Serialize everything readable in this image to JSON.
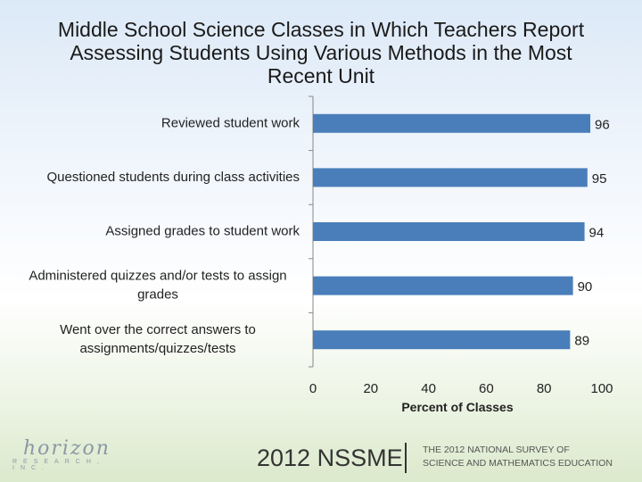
{
  "title": "Middle School Science Classes in Which Teachers Report Assessing Students Using Various Methods in the Most Recent Unit",
  "chart_data": {
    "type": "bar",
    "orientation": "horizontal",
    "categories": [
      "Reviewed student work",
      "Questioned students during class activities",
      "Assigned grades to student work",
      "Administered quizzes and/or tests to assign grades",
      "Went over the correct answers to assignments/quizzes/tests"
    ],
    "category_lines": [
      [
        "Reviewed student work"
      ],
      [
        "Questioned students during class activities"
      ],
      [
        "Assigned grades to student work"
      ],
      [
        "Administered quizzes and/or tests to assign",
        "grades"
      ],
      [
        "Went over the correct answers to",
        "assignments/quizzes/tests"
      ]
    ],
    "values": [
      96,
      95,
      94,
      90,
      89
    ],
    "xlabel": "Percent of Classes",
    "xlim": [
      0,
      100
    ],
    "xticks": [
      0,
      20,
      40,
      60,
      80,
      100
    ],
    "bar_color": "#4a7ebb",
    "grid": false,
    "data_labels": true
  },
  "footer": {
    "year": "2012 NSSME",
    "subtitle_line1": "THE 2012 NATIONAL SURVEY OF",
    "subtitle_line2": "SCIENCE AND MATHEMATICS EDUCATION"
  },
  "logo": {
    "word": "horizon",
    "sub": "RESEARCH, INC."
  }
}
